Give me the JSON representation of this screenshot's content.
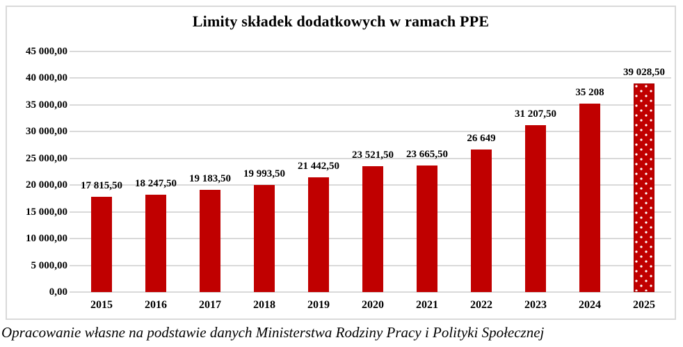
{
  "chart": {
    "title": "Limity składek dodatkowych w ramach PPE",
    "caption": "Opracowanie własne na podstawie danych Ministerstwa Rodziny Pracy i Polityki Społecznej"
  },
  "chart_data": {
    "type": "bar",
    "title": "Limity składek dodatkowych w ramach PPE",
    "categories": [
      "2015",
      "2016",
      "2017",
      "2018",
      "2019",
      "2020",
      "2021",
      "2022",
      "2023",
      "2024",
      "2025"
    ],
    "values": [
      17815.5,
      18247.5,
      19183.5,
      19993.5,
      21442.5,
      23521.5,
      23665.5,
      26649,
      31207.5,
      35208,
      39028.5
    ],
    "value_labels": [
      "17 815,50",
      "18 247,50",
      "19 183,50",
      "19 993,50",
      "21 442,50",
      "23 521,50",
      "23 665,50",
      "26 649",
      "31 207,50",
      "35 208",
      "39 028,50"
    ],
    "xlabel": "",
    "ylabel": "",
    "ylim": [
      0,
      45000
    ],
    "ytick_step": 5000,
    "ytick_labels": [
      "0,00",
      "5 000,00",
      "10 000,00",
      "15 000,00",
      "20 000,00",
      "25 000,00",
      "30 000,00",
      "35 000,00",
      "40 000,00",
      "45 000,00"
    ],
    "grid": true,
    "legend": "none",
    "bar_color": "#C00000",
    "last_bar_style": "white-polka-dots",
    "gridline_color": "#D9D9D9",
    "caption": "Opracowanie własne na podstawie danych Ministerstwa Rodziny Pracy i Polityki Społecznej"
  }
}
